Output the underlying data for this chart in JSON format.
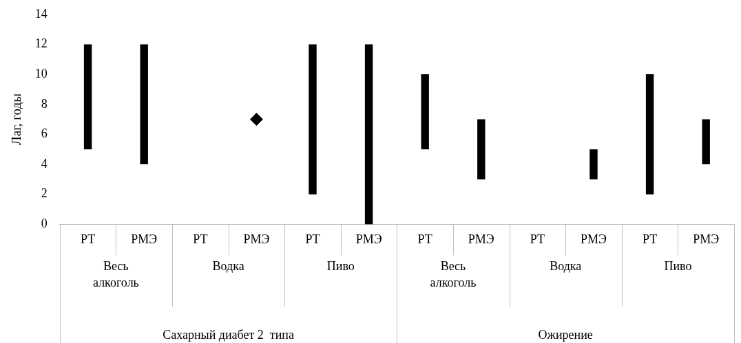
{
  "chart_data": {
    "type": "bar",
    "ylabel": "Лаг, годы",
    "categories": [
      "РТ",
      "РМЭ",
      "РТ",
      "РМЭ",
      "РТ",
      "РМЭ",
      "РТ",
      "РМЭ",
      "РТ",
      "РМЭ",
      "РТ",
      "РМЭ"
    ],
    "series": [
      {
        "color": "#000000",
        "base": [
          5,
          4,
          null,
          null,
          2,
          0,
          5,
          3,
          null,
          3,
          2,
          4
        ],
        "values": [
          7,
          8,
          null,
          null,
          10,
          12,
          5,
          4,
          null,
          2,
          8,
          3
        ]
      },
      {
        "type": "scatter",
        "color": "#000000",
        "marker": "diamond",
        "values": [
          null,
          null,
          null,
          7,
          null,
          null,
          null,
          null,
          null,
          null,
          null,
          null
        ]
      }
    ],
    "ylim": [
      0,
      14
    ],
    "yticks": [
      0,
      2,
      4,
      6,
      8,
      10,
      12,
      14
    ],
    "grid": false,
    "legend": false,
    "annotations": [
      "Весь алкоголь",
      "Водка",
      "Пиво",
      "Весь алкоголь",
      "Водка",
      "Пиво",
      "Сахарный диабет 2  типа",
      "Ожирение"
    ]
  }
}
